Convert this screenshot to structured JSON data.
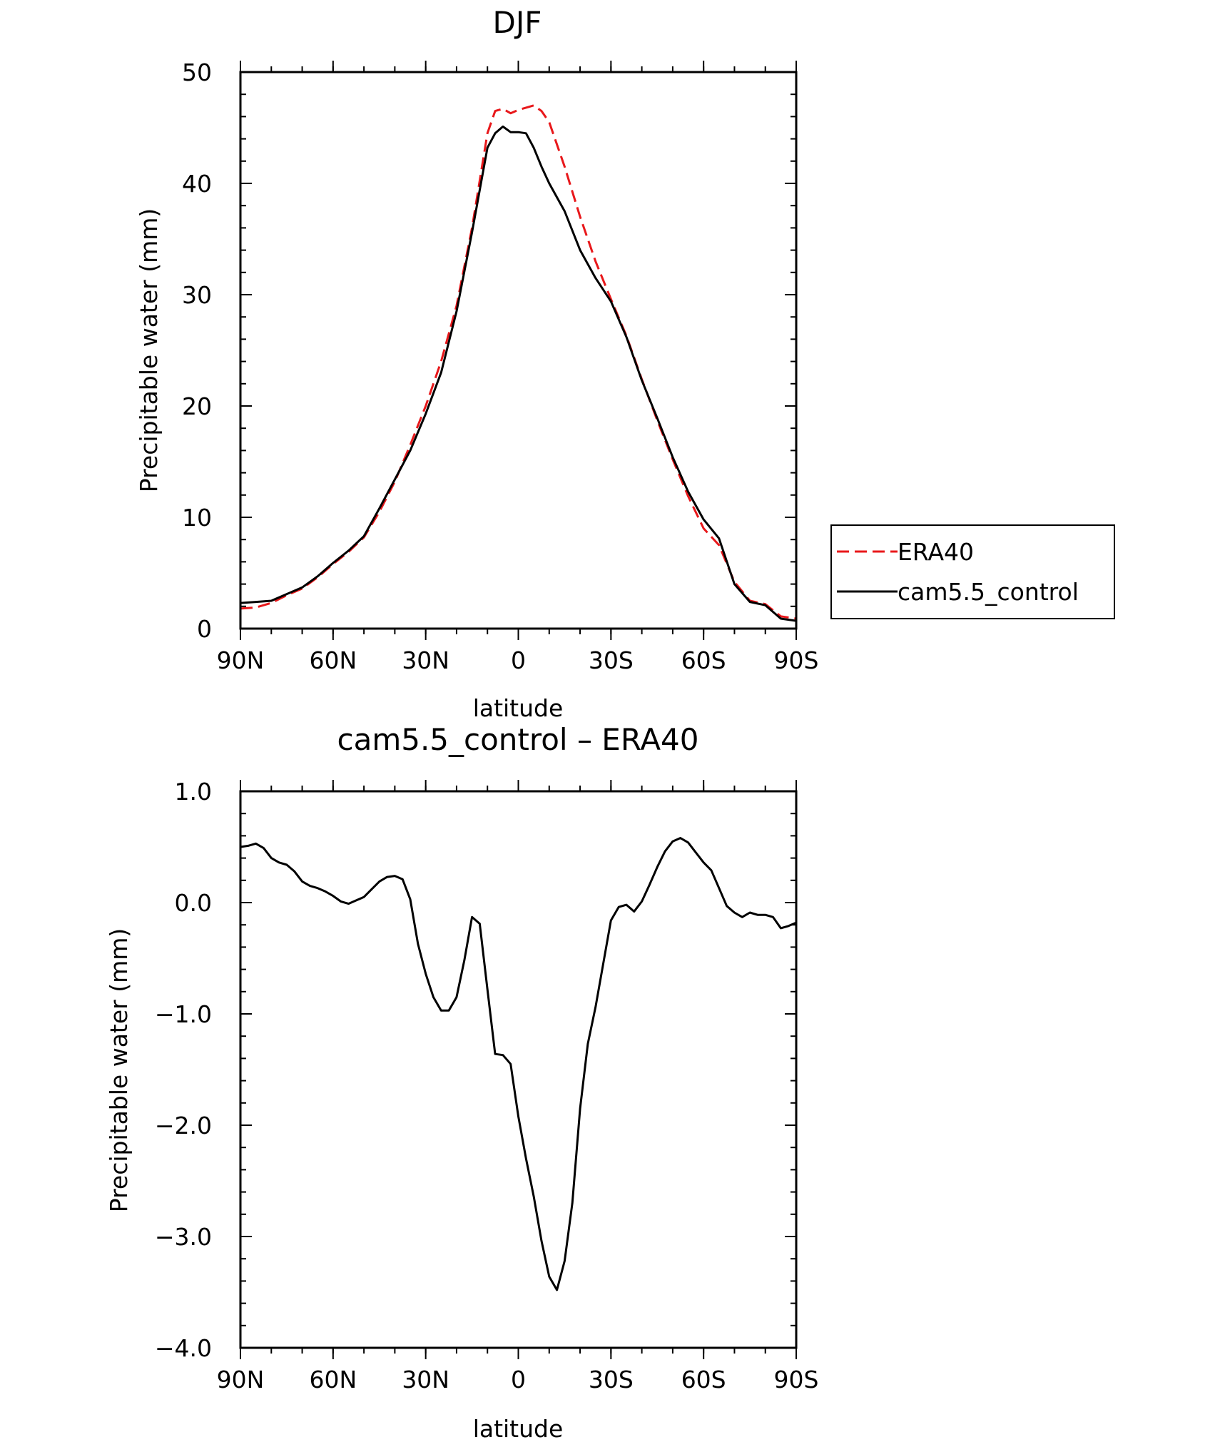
{
  "chart_data": [
    {
      "type": "line",
      "title": "DJF",
      "xlabel": "latitude",
      "ylabel": "Precipitable water (mm)",
      "xlim": [
        90,
        -90
      ],
      "ylim": [
        0,
        50
      ],
      "x_ticks": [
        90,
        60,
        30,
        0,
        -30,
        -60,
        -90
      ],
      "x_tick_labels": [
        "90N",
        "60N",
        "30N",
        "0",
        "30S",
        "60S",
        "90S"
      ],
      "y_ticks": [
        0,
        10,
        20,
        30,
        40,
        50
      ],
      "y_tick_labels": [
        "0",
        "10",
        "20",
        "30",
        "40",
        "50"
      ],
      "legend": {
        "position": "right",
        "entries": [
          "ERA40",
          "cam5.5_control"
        ]
      },
      "series": [
        {
          "name": "ERA40",
          "color": "#e8181b",
          "dash": "dashed",
          "x": [
            90,
            85,
            80,
            75,
            70,
            65,
            60,
            55,
            50,
            45,
            40,
            35,
            30,
            25,
            20,
            15,
            10,
            7.5,
            5,
            2.5,
            0,
            -2.5,
            -5,
            -7.5,
            -10,
            -15,
            -20,
            -25,
            -30,
            -35,
            -40,
            -45,
            -50,
            -55,
            -60,
            -65,
            -70,
            -75,
            -80,
            -85,
            -90
          ],
          "values": [
            1.8,
            1.9,
            2.3,
            3.0,
            3.6,
            4.6,
            5.8,
            6.9,
            8.2,
            10.5,
            13.2,
            16.5,
            20.0,
            24.0,
            29.0,
            36.0,
            44.5,
            46.5,
            46.7,
            46.3,
            46.6,
            46.8,
            47.0,
            46.5,
            45.5,
            41.5,
            37.0,
            33.0,
            29.6,
            26.3,
            22.4,
            18.7,
            15.2,
            11.9,
            9.0,
            7.5,
            4.2,
            2.5,
            2.2,
            1.1,
            0.9
          ]
        },
        {
          "name": "cam5.5_control",
          "color": "#000000",
          "dash": "solid",
          "x": [
            90,
            85,
            80,
            75,
            70,
            65,
            60,
            55,
            50,
            45,
            40,
            35,
            30,
            25,
            20,
            15,
            10,
            7.5,
            5,
            2.5,
            0,
            -2.5,
            -5,
            -7.5,
            -10,
            -15,
            -20,
            -25,
            -30,
            -35,
            -40,
            -45,
            -50,
            -55,
            -60,
            -65,
            -70,
            -75,
            -80,
            -85,
            -90
          ],
          "values": [
            2.3,
            2.4,
            2.5,
            3.1,
            3.7,
            4.7,
            5.9,
            7.0,
            8.3,
            10.8,
            13.4,
            16.0,
            19.3,
            23.0,
            28.5,
            35.6,
            43.2,
            44.5,
            45.1,
            44.6,
            44.6,
            44.5,
            43.2,
            41.5,
            40.0,
            37.5,
            34.0,
            31.5,
            29.4,
            26.2,
            22.3,
            18.9,
            15.4,
            12.3,
            9.8,
            8.1,
            4.0,
            2.4,
            2.1,
            0.9,
            0.7
          ]
        }
      ]
    },
    {
      "type": "line",
      "title": "cam5.5_control – ERA40",
      "xlabel": "latitude",
      "ylabel": "Precipitable water (mm)",
      "xlim": [
        90,
        -90
      ],
      "ylim": [
        -4,
        1
      ],
      "x_ticks": [
        90,
        60,
        30,
        0,
        -30,
        -60,
        -90
      ],
      "x_tick_labels": [
        "90N",
        "60N",
        "30N",
        "0",
        "30S",
        "60S",
        "90S"
      ],
      "y_ticks": [
        1,
        0,
        -1,
        -2,
        -3,
        -4
      ],
      "y_tick_labels": [
        "1.0",
        "0.0",
        "−1.0",
        "−2.0",
        "−3.0",
        "−4.0"
      ],
      "series": [
        {
          "color": "#000000",
          "dash": "solid",
          "x": [
            90,
            87.5,
            85,
            82.5,
            80,
            77.5,
            75,
            72.5,
            70,
            67.5,
            65,
            62.5,
            60,
            57.5,
            55,
            52.5,
            50,
            47.5,
            45,
            42.5,
            40,
            37.5,
            35,
            32.5,
            30,
            27.5,
            25,
            22.5,
            20,
            17.5,
            15,
            12.5,
            10,
            7.5,
            5,
            2.5,
            0,
            -2.5,
            -5,
            -7.5,
            -10,
            -12.5,
            -15,
            -17.5,
            -20,
            -22.5,
            -25,
            -27.5,
            -30,
            -32.5,
            -35,
            -37.5,
            -40,
            -42.5,
            -45,
            -47.5,
            -50,
            -52.5,
            -55,
            -57.5,
            -60,
            -62.5,
            -65,
            -67.5,
            -70,
            -72.5,
            -75,
            -77.5,
            -80,
            -82.5,
            -85,
            -87.5,
            -90
          ],
          "values": [
            0.5,
            0.51,
            0.53,
            0.49,
            0.4,
            0.36,
            0.34,
            0.28,
            0.19,
            0.15,
            0.13,
            0.1,
            0.06,
            0.01,
            -0.01,
            0.02,
            0.05,
            0.12,
            0.19,
            0.23,
            0.24,
            0.21,
            0.03,
            -0.37,
            -0.64,
            -0.85,
            -0.97,
            -0.97,
            -0.85,
            -0.52,
            -0.13,
            -0.19,
            -0.78,
            -1.36,
            -1.37,
            -1.45,
            -1.92,
            -2.3,
            -2.64,
            -3.04,
            -3.36,
            -3.48,
            -3.22,
            -2.7,
            -1.85,
            -1.27,
            -0.94,
            -0.55,
            -0.16,
            -0.04,
            -0.02,
            -0.08,
            0.01,
            0.16,
            0.32,
            0.46,
            0.55,
            0.58,
            0.54,
            0.45,
            0.36,
            0.29,
            0.13,
            -0.03,
            -0.09,
            -0.13,
            -0.09,
            -0.11,
            -0.11,
            -0.13,
            -0.23,
            -0.21,
            -0.18
          ]
        }
      ]
    }
  ]
}
